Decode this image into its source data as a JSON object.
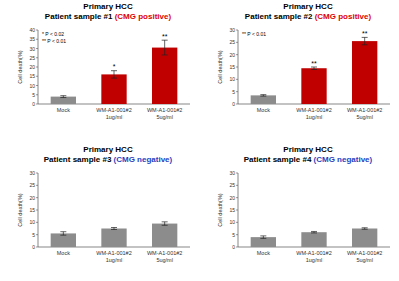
{
  "chart_data": [
    {
      "type": "bar",
      "title": "Primary HCC",
      "subtitle": "Patient sample #1 (CMG positive)",
      "y_label": "Cell death(%)",
      "categories": [
        "Mock",
        "WM-A1-001#2\n1ug/ml",
        "WM-A1-001#2\n5ug/ml"
      ],
      "values": [
        4,
        16,
        30.5
      ],
      "errors": [
        0.5,
        2,
        4
      ],
      "colors": [
        "#8c8c8c",
        "#c00000",
        "#c00000"
      ],
      "significance": [
        null,
        "*",
        "**"
      ],
      "annotations": [
        "* P < 0.02",
        "** P < 0.01"
      ],
      "ylim": [
        0,
        40
      ],
      "yticks": [
        0,
        5,
        10,
        15,
        20,
        25,
        30,
        35,
        40
      ]
    },
    {
      "type": "bar",
      "title": "Primary HCC",
      "subtitle": "Patient sample #2 (CMG positive)",
      "y_label": "Cell death(%)",
      "categories": [
        "Mock",
        "WM-A1-001#2\n1ug/ml",
        "WM-A1-001#2\n5ug/ml"
      ],
      "values": [
        3.5,
        14.5,
        25.5
      ],
      "errors": [
        0.3,
        0.5,
        1.5
      ],
      "colors": [
        "#8c8c8c",
        "#c00000",
        "#c00000"
      ],
      "significance": [
        null,
        "**",
        "**"
      ],
      "annotations": [
        "** P < 0.01"
      ],
      "ylim": [
        0,
        30
      ],
      "yticks": [
        0,
        5,
        10,
        15,
        20,
        25,
        30
      ]
    },
    {
      "type": "bar",
      "title": "Primary HCC",
      "subtitle": "Patient sample #3 (CMG negative)",
      "y_label": "Cell death(%)",
      "categories": [
        "Mock",
        "WM-A1-001#2\n1ug/ml",
        "WM-A1-001#2\n5ug/ml"
      ],
      "values": [
        5.5,
        7.5,
        9.5
      ],
      "errors": [
        0.7,
        0.4,
        0.7
      ],
      "colors": [
        "#8c8c8c",
        "#8c8c8c",
        "#8c8c8c"
      ],
      "ylim": [
        0,
        30
      ],
      "yticks": [
        0,
        5,
        10,
        15,
        20,
        25,
        30
      ]
    },
    {
      "type": "bar",
      "title": "Primary HCC",
      "subtitle": "Patient sample #4 (CMG negative)",
      "y_label": "Cell death(%)",
      "categories": [
        "Mock",
        "WM-A1-001#2\n1ug/ml",
        "WM-A1-001#2\n5ug/ml"
      ],
      "values": [
        4,
        6,
        7.5
      ],
      "errors": [
        0.5,
        0.3,
        0.3
      ],
      "colors": [
        "#8c8c8c",
        "#8c8c8c",
        "#8c8c8c"
      ],
      "ylim": [
        0,
        30
      ],
      "yticks": [
        0,
        5,
        10,
        15,
        20,
        25,
        30
      ]
    }
  ]
}
